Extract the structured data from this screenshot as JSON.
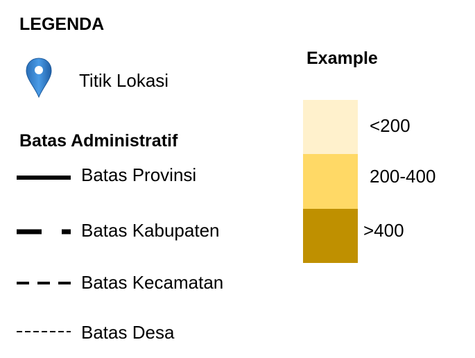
{
  "legend": {
    "title": "LEGENDA",
    "location": {
      "icon": "map-pin-icon",
      "label": "Titik Lokasi",
      "color": "#2f7fd0"
    },
    "admin_title": "Batas Administratif",
    "boundaries": [
      {
        "label": "Batas Provinsi",
        "style": "solid-thick"
      },
      {
        "label": "Batas Kabupaten",
        "style": "long-dash"
      },
      {
        "label": "Batas Kecamatan",
        "style": "medium-dash"
      },
      {
        "label": "Batas Desa",
        "style": "fine-dash"
      }
    ]
  },
  "example": {
    "title": "Example",
    "classes": [
      {
        "label": "<200",
        "color": "#fff1cc"
      },
      {
        "label": "200-400",
        "color": "#ffd966"
      },
      {
        "label": ">400",
        "color": "#bf9000"
      }
    ]
  }
}
